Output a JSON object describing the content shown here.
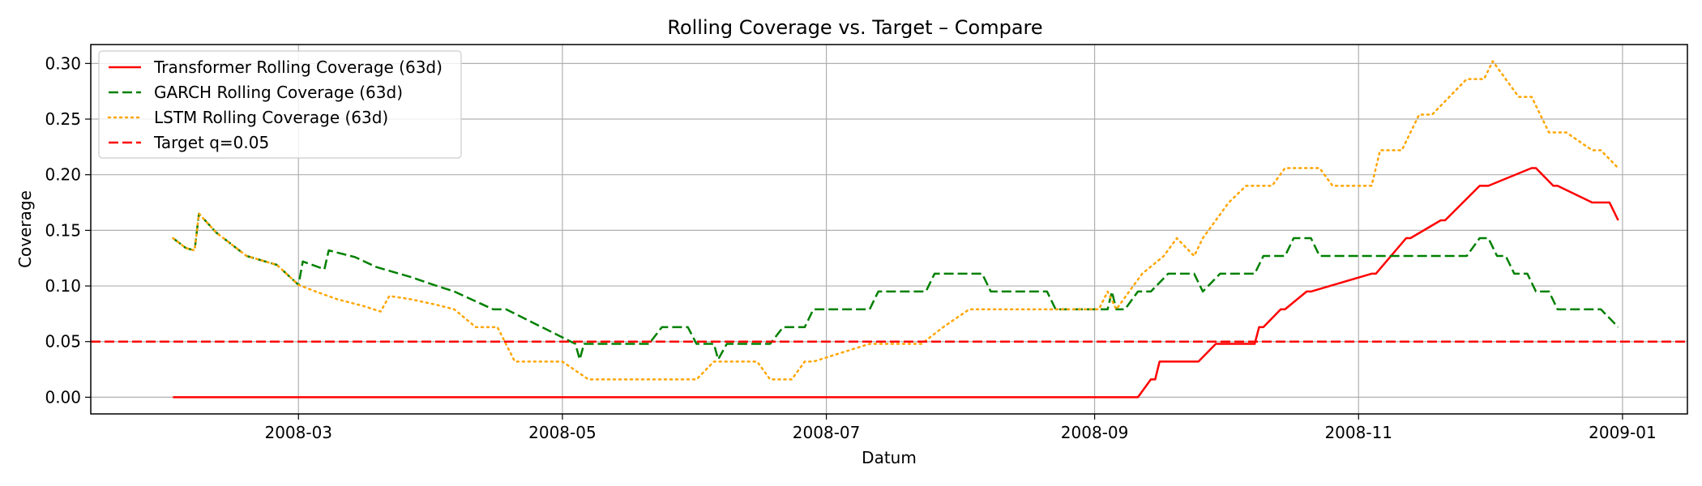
{
  "chart_data": {
    "type": "line",
    "title": "Rolling Coverage vs. Target – Compare",
    "xlabel": "Datum",
    "ylabel": "Coverage",
    "xlim": [
      "2008-01-13",
      "2009-01-16"
    ],
    "ylim": [
      -0.015,
      0.317
    ],
    "grid": true,
    "legend_position": "top-left",
    "x_ticks": [
      {
        "date": "2008-03-01",
        "label": "2008-03"
      },
      {
        "date": "2008-05-01",
        "label": "2008-05"
      },
      {
        "date": "2008-07-01",
        "label": "2008-07"
      },
      {
        "date": "2008-09-01",
        "label": "2008-09"
      },
      {
        "date": "2008-11-01",
        "label": "2008-11"
      },
      {
        "date": "2009-01-01",
        "label": "2009-01"
      }
    ],
    "y_ticks": [
      {
        "value": 0.0,
        "label": "0.00"
      },
      {
        "value": 0.05,
        "label": "0.05"
      },
      {
        "value": 0.1,
        "label": "0.10"
      },
      {
        "value": 0.15,
        "label": "0.15"
      },
      {
        "value": 0.2,
        "label": "0.20"
      },
      {
        "value": 0.25,
        "label": "0.25"
      },
      {
        "value": 0.3,
        "label": "0.30"
      }
    ],
    "series": [
      {
        "name": "Transformer Rolling Coverage (63d)",
        "color": "#ff0000",
        "dash": "solid",
        "x": [
          "2008-02-01",
          "2008-09-11",
          "2008-09-14",
          "2008-09-15",
          "2008-09-16",
          "2008-09-25",
          "2008-09-29",
          "2008-10-08",
          "2008-10-09",
          "2008-10-10",
          "2008-10-14",
          "2008-10-15",
          "2008-10-20",
          "2008-10-21",
          "2008-11-04",
          "2008-11-05",
          "2008-11-12",
          "2008-11-13",
          "2008-11-20",
          "2008-11-21",
          "2008-11-29",
          "2008-12-01",
          "2008-12-11",
          "2008-12-12",
          "2008-12-16",
          "2008-12-17",
          "2008-12-25",
          "2008-12-29",
          "2008-12-31"
        ],
        "y": [
          0.0,
          0.0,
          0.016,
          0.016,
          0.032,
          0.032,
          0.048,
          0.048,
          0.063,
          0.063,
          0.079,
          0.079,
          0.095,
          0.095,
          0.111,
          0.111,
          0.143,
          0.143,
          0.159,
          0.159,
          0.19,
          0.19,
          0.206,
          0.206,
          0.19,
          0.19,
          0.175,
          0.175,
          0.159
        ]
      },
      {
        "name": "GARCH Rolling Coverage (63d)",
        "color": "#008000",
        "dash": "dashed",
        "x": [
          "2008-02-01",
          "2008-02-04",
          "2008-02-06",
          "2008-02-07",
          "2008-02-11",
          "2008-02-18",
          "2008-02-25",
          "2008-03-01",
          "2008-03-02",
          "2008-03-07",
          "2008-03-08",
          "2008-03-14",
          "2008-03-19",
          "2008-03-27",
          "2008-04-02",
          "2008-04-06",
          "2008-04-15",
          "2008-04-18",
          "2008-05-04",
          "2008-05-05",
          "2008-05-06",
          "2008-05-11",
          "2008-05-21",
          "2008-05-24",
          "2008-05-30",
          "2008-06-01",
          "2008-06-05",
          "2008-06-06",
          "2008-06-08",
          "2008-06-18",
          "2008-06-21",
          "2008-06-26",
          "2008-06-28",
          "2008-07-11",
          "2008-07-13",
          "2008-07-24",
          "2008-07-26",
          "2008-08-06",
          "2008-08-08",
          "2008-08-21",
          "2008-08-23",
          "2008-09-04",
          "2008-09-05",
          "2008-09-06",
          "2008-09-08",
          "2008-09-11",
          "2008-09-14",
          "2008-09-18",
          "2008-09-24",
          "2008-09-26",
          "2008-09-30",
          "2008-10-08",
          "2008-10-10",
          "2008-10-15",
          "2008-10-17",
          "2008-10-21",
          "2008-10-23",
          "2008-11-26",
          "2008-11-29",
          "2008-12-01",
          "2008-12-03",
          "2008-12-05",
          "2008-12-07",
          "2008-12-10",
          "2008-12-12",
          "2008-12-15",
          "2008-12-17",
          "2008-12-25",
          "2008-12-27",
          "2008-12-31"
        ],
        "y": [
          0.143,
          0.134,
          0.132,
          0.165,
          0.148,
          0.127,
          0.119,
          0.101,
          0.122,
          0.115,
          0.132,
          0.126,
          0.117,
          0.108,
          0.1,
          0.095,
          0.079,
          0.079,
          0.048,
          0.034,
          0.048,
          0.048,
          0.048,
          0.063,
          0.063,
          0.048,
          0.048,
          0.034,
          0.048,
          0.048,
          0.063,
          0.063,
          0.079,
          0.079,
          0.095,
          0.095,
          0.111,
          0.111,
          0.095,
          0.095,
          0.079,
          0.079,
          0.095,
          0.079,
          0.079,
          0.095,
          0.095,
          0.111,
          0.111,
          0.095,
          0.111,
          0.111,
          0.127,
          0.127,
          0.143,
          0.143,
          0.127,
          0.127,
          0.143,
          0.143,
          0.127,
          0.127,
          0.111,
          0.111,
          0.095,
          0.095,
          0.079,
          0.079,
          0.079,
          0.063
        ]
      },
      {
        "name": "LSTM Rolling Coverage (63d)",
        "color": "#ffa500",
        "dash": "dotted",
        "x": [
          "2008-02-01",
          "2008-02-04",
          "2008-02-06",
          "2008-02-07",
          "2008-02-11",
          "2008-02-18",
          "2008-02-25",
          "2008-03-01",
          "2008-03-05",
          "2008-03-10",
          "2008-03-16",
          "2008-03-20",
          "2008-03-22",
          "2008-03-27",
          "2008-04-02",
          "2008-04-06",
          "2008-04-11",
          "2008-04-16",
          "2008-04-20",
          "2008-05-01",
          "2008-05-07",
          "2008-05-11",
          "2008-06-01",
          "2008-06-05",
          "2008-06-08",
          "2008-06-15",
          "2008-06-18",
          "2008-06-23",
          "2008-06-26",
          "2008-06-28",
          "2008-07-11",
          "2008-07-13",
          "2008-07-23",
          "2008-07-28",
          "2008-08-03",
          "2008-08-15",
          "2008-08-20",
          "2008-09-02",
          "2008-09-04",
          "2008-09-06",
          "2008-09-09",
          "2008-09-12",
          "2008-09-17",
          "2008-09-20",
          "2008-09-24",
          "2008-09-26",
          "2008-09-29",
          "2008-10-02",
          "2008-10-06",
          "2008-10-12",
          "2008-10-15",
          "2008-10-23",
          "2008-10-26",
          "2008-11-04",
          "2008-11-06",
          "2008-11-11",
          "2008-11-15",
          "2008-11-18",
          "2008-11-26",
          "2008-11-30",
          "2008-12-02",
          "2008-12-05",
          "2008-12-08",
          "2008-12-11",
          "2008-12-15",
          "2008-12-19",
          "2008-12-25",
          "2008-12-27",
          "2008-12-31"
        ],
        "y": [
          0.143,
          0.134,
          0.132,
          0.165,
          0.148,
          0.127,
          0.119,
          0.101,
          0.095,
          0.088,
          0.082,
          0.077,
          0.091,
          0.088,
          0.083,
          0.079,
          0.063,
          0.063,
          0.032,
          0.032,
          0.016,
          0.016,
          0.016,
          0.032,
          0.032,
          0.032,
          0.016,
          0.016,
          0.032,
          0.032,
          0.048,
          0.048,
          0.048,
          0.063,
          0.079,
          0.079,
          0.079,
          0.079,
          0.095,
          0.079,
          0.095,
          0.111,
          0.127,
          0.143,
          0.127,
          0.143,
          0.159,
          0.175,
          0.19,
          0.19,
          0.206,
          0.206,
          0.19,
          0.19,
          0.222,
          0.222,
          0.254,
          0.254,
          0.286,
          0.286,
          0.302,
          0.286,
          0.27,
          0.27,
          0.238,
          0.238,
          0.222,
          0.222,
          0.206
        ]
      },
      {
        "name": "Target q=0.05",
        "color": "#ff0000",
        "dash": "dashed",
        "type": "hline",
        "value": 0.05
      }
    ]
  }
}
